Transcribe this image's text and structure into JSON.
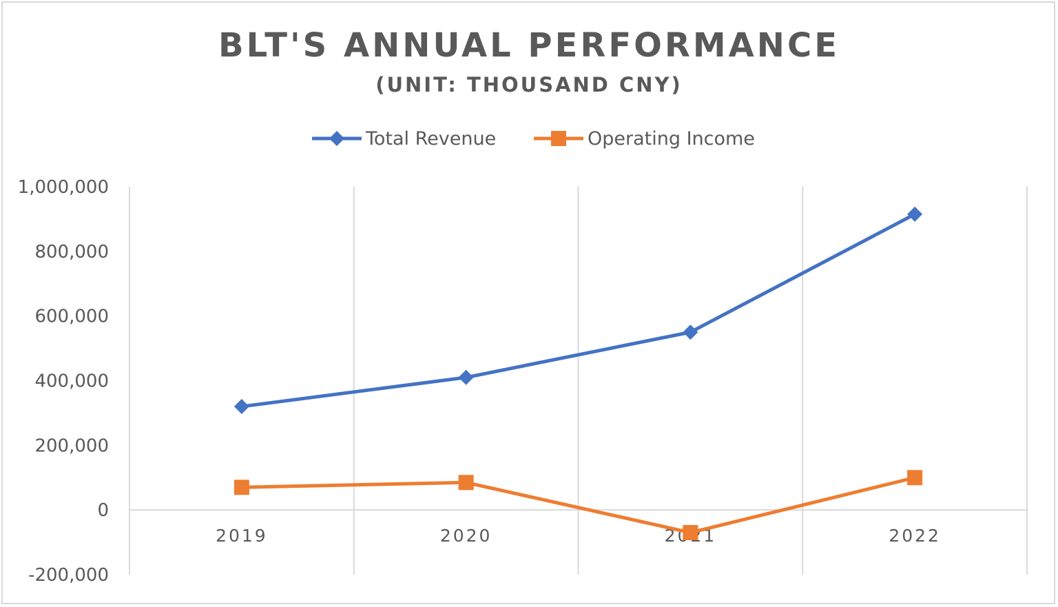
{
  "chart_data": {
    "type": "line",
    "title": "BLT'S ANNUAL PERFORMANCE",
    "subtitle": "(UNIT: THOUSAND CNY)",
    "categories": [
      "2019",
      "2020",
      "2021",
      "2022"
    ],
    "series": [
      {
        "name": "Total Revenue",
        "values": [
          320000,
          410000,
          550000,
          915000
        ],
        "color": "#4472c4",
        "marker": "diamond"
      },
      {
        "name": "Operating Income",
        "values": [
          70000,
          85000,
          -70000,
          100000
        ],
        "color": "#ed7d31",
        "marker": "square"
      }
    ],
    "ylim": [
      -200000,
      1000000
    ],
    "yticks": [
      "1,000,000",
      "800,000",
      "600,000",
      "400,000",
      "200,000",
      "0",
      "-200,000"
    ],
    "ytick_values": [
      1000000,
      800000,
      600000,
      400000,
      200000,
      0,
      -200000
    ],
    "grid": "vertical",
    "legend_position": "top"
  }
}
